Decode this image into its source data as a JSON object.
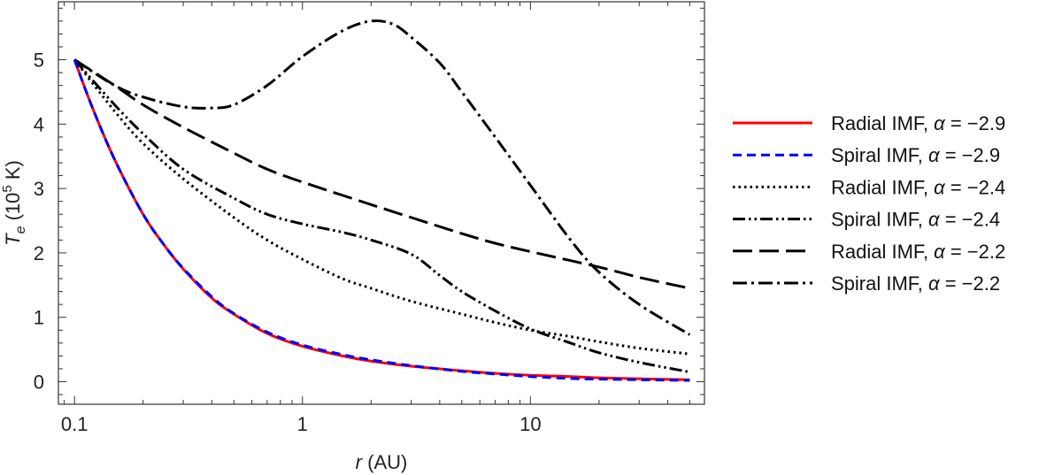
{
  "chart_data": {
    "type": "line",
    "x_scale": "log",
    "xlim": [
      0.085,
      58
    ],
    "ylim": [
      -0.35,
      5.9
    ],
    "x_ticks": [
      {
        "value": 0.1,
        "label": "0.1"
      },
      {
        "value": 1,
        "label": "1"
      },
      {
        "value": 10,
        "label": "10"
      }
    ],
    "y_ticks": [
      {
        "value": 0,
        "label": "0"
      },
      {
        "value": 1,
        "label": "1"
      },
      {
        "value": 2,
        "label": "2"
      },
      {
        "value": 3,
        "label": "3"
      },
      {
        "value": 4,
        "label": "4"
      },
      {
        "value": 5,
        "label": "5"
      }
    ],
    "xlabel": {
      "symbol": "r",
      "unit": " (AU)"
    },
    "ylabel": {
      "symbol": "T",
      "subscript": "e",
      "unit_pre": " (10",
      "unit_exp": "5",
      "unit_post": " K)"
    },
    "legend_placement": "right",
    "grid": false,
    "series": [
      {
        "name": "Radial IMF, α = −2.9",
        "name_parts": {
          "pre": "Radial IMF, ",
          "alpha": "α",
          "post": " = −2.9"
        },
        "color": "#ff0000",
        "style": "solid",
        "points": [
          [
            0.1,
            5.0
          ],
          [
            0.12,
            4.25
          ],
          [
            0.15,
            3.45
          ],
          [
            0.2,
            2.6
          ],
          [
            0.25,
            2.1
          ],
          [
            0.3,
            1.75
          ],
          [
            0.4,
            1.3
          ],
          [
            0.5,
            1.05
          ],
          [
            0.7,
            0.75
          ],
          [
            1.0,
            0.55
          ],
          [
            1.5,
            0.4
          ],
          [
            2.0,
            0.32
          ],
          [
            3.0,
            0.24
          ],
          [
            5.0,
            0.17
          ],
          [
            7.0,
            0.13
          ],
          [
            10.0,
            0.1
          ],
          [
            15.0,
            0.08
          ],
          [
            20.0,
            0.06
          ],
          [
            30.0,
            0.045
          ],
          [
            50.0,
            0.03
          ]
        ]
      },
      {
        "name": "Spiral IMF, α = −2.9",
        "name_parts": {
          "pre": "Spiral IMF, ",
          "alpha": "α",
          "post": " = −2.9"
        },
        "color": "#0000ff",
        "style": "dashed",
        "points": [
          [
            0.1,
            5.0
          ],
          [
            0.12,
            4.25
          ],
          [
            0.15,
            3.45
          ],
          [
            0.2,
            2.6
          ],
          [
            0.25,
            2.1
          ],
          [
            0.3,
            1.76
          ],
          [
            0.4,
            1.32
          ],
          [
            0.5,
            1.06
          ],
          [
            0.7,
            0.77
          ],
          [
            1.0,
            0.57
          ],
          [
            1.5,
            0.42
          ],
          [
            2.0,
            0.34
          ],
          [
            3.0,
            0.25
          ],
          [
            5.0,
            0.16
          ],
          [
            7.0,
            0.12
          ],
          [
            10.0,
            0.08
          ],
          [
            15.0,
            0.05
          ],
          [
            20.0,
            0.04
          ],
          [
            30.0,
            0.03
          ],
          [
            50.0,
            0.02
          ]
        ]
      },
      {
        "name": "Radial IMF, α = −2.4",
        "name_parts": {
          "pre": "Radial IMF, ",
          "alpha": "α",
          "post": " = −2.4"
        },
        "color": "#000000",
        "style": "dotted",
        "points": [
          [
            0.1,
            5.0
          ],
          [
            0.15,
            4.2
          ],
          [
            0.2,
            3.7
          ],
          [
            0.3,
            3.15
          ],
          [
            0.5,
            2.55
          ],
          [
            0.7,
            2.2
          ],
          [
            1.0,
            1.9
          ],
          [
            1.5,
            1.6
          ],
          [
            2.0,
            1.45
          ],
          [
            3.0,
            1.25
          ],
          [
            5.0,
            1.05
          ],
          [
            7.0,
            0.92
          ],
          [
            10.0,
            0.8
          ],
          [
            15.0,
            0.7
          ],
          [
            20.0,
            0.62
          ],
          [
            30.0,
            0.52
          ],
          [
            50.0,
            0.43
          ]
        ]
      },
      {
        "name": "Spiral IMF, α = −2.4",
        "name_parts": {
          "pre": "Spiral IMF, ",
          "alpha": "α",
          "post": " = −2.4"
        },
        "color": "#000000",
        "style": "dashdotdot",
        "points": [
          [
            0.1,
            5.0
          ],
          [
            0.15,
            4.3
          ],
          [
            0.2,
            3.85
          ],
          [
            0.3,
            3.3
          ],
          [
            0.5,
            2.85
          ],
          [
            0.7,
            2.6
          ],
          [
            1.0,
            2.45
          ],
          [
            1.5,
            2.32
          ],
          [
            2.0,
            2.2
          ],
          [
            3.0,
            1.98
          ],
          [
            4.0,
            1.65
          ],
          [
            5.0,
            1.4
          ],
          [
            7.0,
            1.1
          ],
          [
            10.0,
            0.82
          ],
          [
            15.0,
            0.6
          ],
          [
            20.0,
            0.45
          ],
          [
            30.0,
            0.3
          ],
          [
            50.0,
            0.15
          ]
        ]
      },
      {
        "name": "Radial IMF, α = −2.2",
        "name_parts": {
          "pre": "Radial IMF, ",
          "alpha": "α",
          "post": " = −2.2"
        },
        "color": "#000000",
        "style": "longdash",
        "points": [
          [
            0.1,
            5.0
          ],
          [
            0.15,
            4.6
          ],
          [
            0.2,
            4.3
          ],
          [
            0.3,
            3.95
          ],
          [
            0.5,
            3.55
          ],
          [
            0.7,
            3.3
          ],
          [
            1.0,
            3.1
          ],
          [
            2.0,
            2.75
          ],
          [
            3.0,
            2.55
          ],
          [
            5.0,
            2.3
          ],
          [
            7.0,
            2.15
          ],
          [
            10.0,
            2.02
          ],
          [
            20.0,
            1.78
          ],
          [
            30.0,
            1.62
          ],
          [
            50.0,
            1.45
          ]
        ]
      },
      {
        "name": "Spiral IMF, α = −2.2",
        "name_parts": {
          "pre": "Spiral IMF, ",
          "alpha": "α",
          "post": " = −2.2"
        },
        "color": "#000000",
        "style": "dashdot",
        "points": [
          [
            0.1,
            5.0
          ],
          [
            0.15,
            4.6
          ],
          [
            0.2,
            4.42
          ],
          [
            0.3,
            4.27
          ],
          [
            0.4,
            4.25
          ],
          [
            0.5,
            4.3
          ],
          [
            0.7,
            4.6
          ],
          [
            1.0,
            5.05
          ],
          [
            1.5,
            5.45
          ],
          [
            2.0,
            5.6
          ],
          [
            2.5,
            5.55
          ],
          [
            3.0,
            5.35
          ],
          [
            4.0,
            4.95
          ],
          [
            5.0,
            4.5
          ],
          [
            7.0,
            3.8
          ],
          [
            10.0,
            3.05
          ],
          [
            15.0,
            2.2
          ],
          [
            20.0,
            1.7
          ],
          [
            30.0,
            1.2
          ],
          [
            50.0,
            0.73
          ]
        ]
      }
    ]
  }
}
